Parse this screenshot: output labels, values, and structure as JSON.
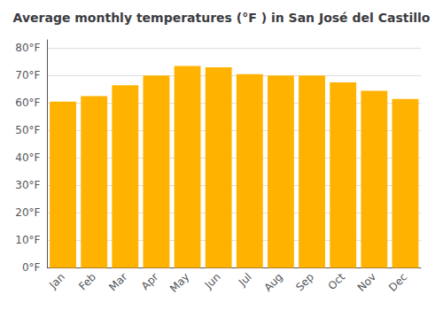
{
  "chart_data": {
    "type": "bar",
    "title": "Average monthly temperatures (°F ) in San José del Castillo",
    "categories": [
      "Jan",
      "Feb",
      "Mar",
      "Apr",
      "May",
      "Jun",
      "Jul",
      "Aug",
      "Sep",
      "Oct",
      "Nov",
      "Dec"
    ],
    "values": [
      60.5,
      62.5,
      66.5,
      70.0,
      73.5,
      73.0,
      70.5,
      70.0,
      70.0,
      67.5,
      64.5,
      61.5
    ],
    "color": "#FFB300",
    "ylim": [
      0,
      83
    ],
    "yticks": [
      {
        "value": 0,
        "label": "0°F"
      },
      {
        "value": 10,
        "label": "10°F"
      },
      {
        "value": 20,
        "label": "20°F"
      },
      {
        "value": 30,
        "label": "30°F"
      },
      {
        "value": 40,
        "label": "40°F"
      },
      {
        "value": 50,
        "label": "50°F"
      },
      {
        "value": 60,
        "label": "60°F"
      },
      {
        "value": 70,
        "label": "70°F"
      },
      {
        "value": 80,
        "label": "80°F"
      }
    ],
    "grid": true
  }
}
